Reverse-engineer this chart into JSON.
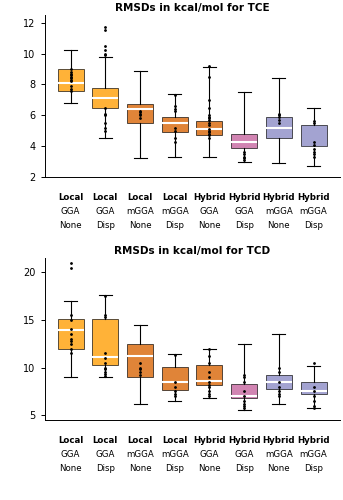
{
  "title_tce": "RMSDs in kcal/mol for TCE",
  "title_tcd": "RMSDs in kcal/mol for TCD",
  "labels": [
    [
      "Local",
      "GGA",
      "None"
    ],
    [
      "Local",
      "GGA",
      "Disp"
    ],
    [
      "Local",
      "mGGA",
      "None"
    ],
    [
      "Local",
      "mGGA",
      "Disp"
    ],
    [
      "Hybrid",
      "GGA",
      "None"
    ],
    [
      "Hybrid",
      "GGA",
      "Disp"
    ],
    [
      "Hybrid",
      "mGGA",
      "None"
    ],
    [
      "Hybrid",
      "mGGA",
      "Disp"
    ]
  ],
  "box_colors": [
    "#FFAA22",
    "#FFAA22",
    "#DD7722",
    "#DD7722",
    "#DD7722",
    "#CC77AA",
    "#9999CC",
    "#9999CC"
  ],
  "tce": {
    "whislo": [
      6.8,
      4.5,
      3.2,
      3.3,
      3.3,
      3.0,
      2.9,
      2.7
    ],
    "q1": [
      7.6,
      6.5,
      5.5,
      4.9,
      4.75,
      3.9,
      4.5,
      4.0
    ],
    "med": [
      8.1,
      7.1,
      6.4,
      5.5,
      5.1,
      4.3,
      5.2,
      3.85
    ],
    "q3": [
      9.0,
      7.8,
      6.7,
      5.9,
      5.6,
      4.8,
      5.9,
      5.35
    ],
    "whishi": [
      10.2,
      9.8,
      8.9,
      7.4,
      9.1,
      7.5,
      8.4,
      6.5
    ],
    "fliers_y": [
      [
        8.3,
        8.5,
        8.6,
        8.7,
        8.8,
        9.0,
        8.4,
        8.2,
        7.9,
        7.7,
        7.6
      ],
      [
        9.9,
        10.0,
        11.5,
        11.7,
        10.2,
        10.5,
        5.0,
        5.2,
        5.5,
        6.0,
        6.1,
        6.5
      ],
      [
        6.1,
        6.2,
        6.3,
        5.8,
        6.0
      ],
      [
        6.3,
        6.4,
        6.6,
        7.3,
        5.0,
        5.2,
        4.5,
        4.3
      ],
      [
        4.7,
        4.8,
        4.9,
        5.0,
        5.1,
        5.4,
        5.5,
        9.2,
        4.5,
        5.7,
        5.8,
        5.9,
        6.0,
        6.5,
        7.0,
        8.5
      ],
      [
        3.1,
        3.2,
        3.3,
        3.5,
        3.6
      ],
      [
        5.9,
        6.0,
        6.1,
        5.5,
        5.7
      ],
      [
        3.3,
        3.5,
        5.5,
        5.6,
        3.6,
        3.8,
        4.1,
        4.3
      ]
    ],
    "ylim": [
      2,
      12.5
    ],
    "yticks": [
      2,
      4,
      6,
      8,
      10,
      12
    ]
  },
  "tcd": {
    "whislo": [
      9.0,
      9.0,
      6.2,
      6.5,
      6.8,
      5.5,
      6.2,
      5.8
    ],
    "q1": [
      12.0,
      10.3,
      9.0,
      7.7,
      8.2,
      6.8,
      7.8,
      7.2
    ],
    "med": [
      13.9,
      11.1,
      11.2,
      8.5,
      8.6,
      7.0,
      8.5,
      7.5
    ],
    "q3": [
      15.1,
      15.1,
      12.5,
      10.1,
      10.3,
      8.3,
      9.2,
      8.5
    ],
    "whishi": [
      17.0,
      17.6,
      14.5,
      11.4,
      12.0,
      12.5,
      13.5,
      10.2
    ],
    "fliers_y": [
      [
        11.5,
        12.0,
        12.5,
        13.0,
        15.0,
        15.5,
        20.5,
        21.0,
        12.8,
        13.5,
        14.0
      ],
      [
        9.1,
        9.3,
        9.5,
        10.0,
        15.3,
        15.5,
        17.5,
        9.8,
        10.5,
        11.0,
        11.5
      ],
      [
        9.2,
        9.5,
        10.0,
        10.5,
        9.8
      ],
      [
        7.0,
        7.2,
        8.0,
        11.3,
        7.5,
        8.5
      ],
      [
        7.0,
        7.5,
        8.0,
        8.5,
        9.0,
        10.5,
        11.2,
        12.0,
        7.2,
        8.2,
        9.5
      ],
      [
        5.8,
        6.0,
        6.2,
        6.5,
        8.5,
        9.0,
        9.2,
        7.0,
        7.5
      ],
      [
        7.0,
        7.5,
        8.0,
        9.5,
        10.0,
        7.2,
        8.5
      ],
      [
        5.8,
        6.0,
        6.5,
        7.0,
        10.5,
        7.5,
        8.0
      ]
    ],
    "ylim": [
      4.5,
      21.5
    ],
    "yticks": [
      5,
      10,
      15,
      20
    ]
  },
  "median_color": "white",
  "whisker_color": "black"
}
